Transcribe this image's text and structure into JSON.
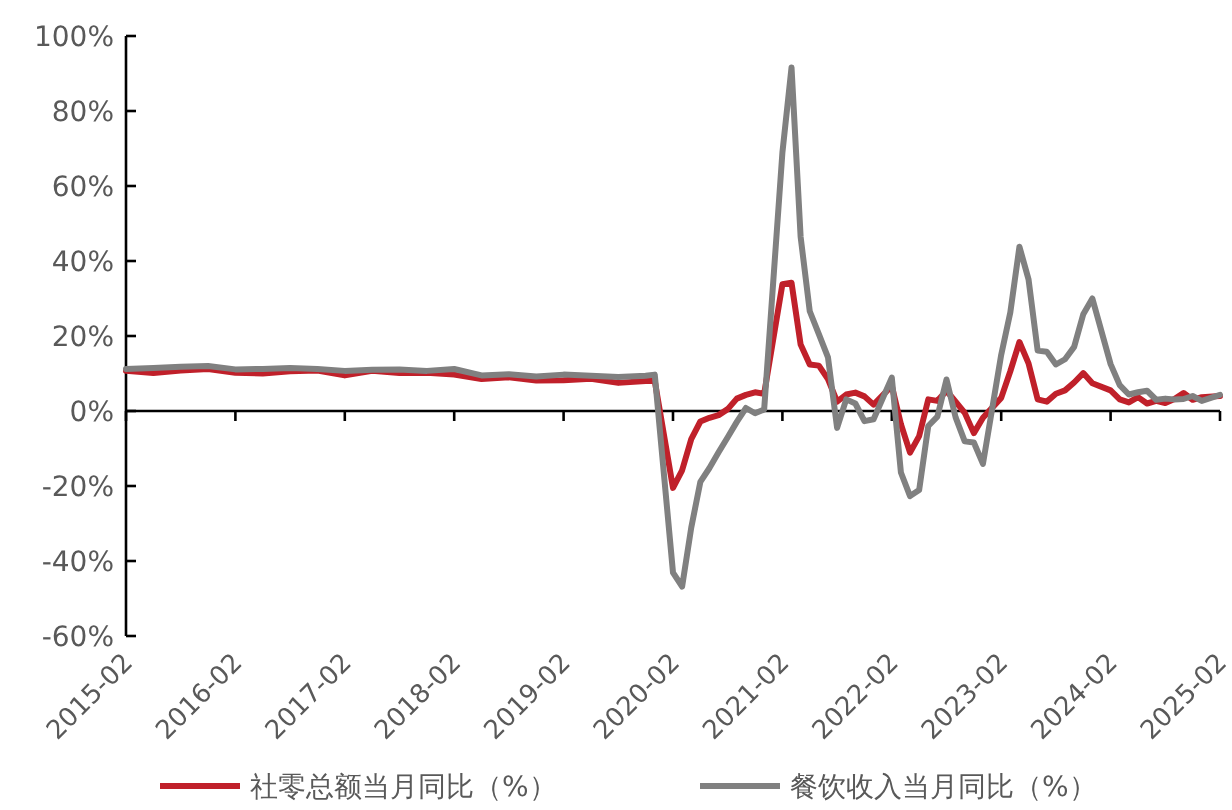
{
  "chart_data": {
    "type": "line",
    "x": [
      "2015-02",
      "2015-05",
      "2015-08",
      "2015-11",
      "2016-02",
      "2016-05",
      "2016-08",
      "2016-11",
      "2017-02",
      "2017-05",
      "2017-08",
      "2017-11",
      "2018-02",
      "2018-05",
      "2018-08",
      "2018-11",
      "2019-02",
      "2019-05",
      "2019-08",
      "2019-11",
      "2019-12",
      "2020-02",
      "2020-03",
      "2020-04",
      "2020-05",
      "2020-06",
      "2020-07",
      "2020-08",
      "2020-09",
      "2020-10",
      "2020-11",
      "2020-12",
      "2021-02",
      "2021-03",
      "2021-04",
      "2021-05",
      "2021-06",
      "2021-07",
      "2021-08",
      "2021-09",
      "2021-10",
      "2021-11",
      "2021-12",
      "2022-02",
      "2022-03",
      "2022-04",
      "2022-05",
      "2022-06",
      "2022-07",
      "2022-08",
      "2022-09",
      "2022-10",
      "2022-11",
      "2022-12",
      "2023-02",
      "2023-03",
      "2023-04",
      "2023-05",
      "2023-06",
      "2023-07",
      "2023-08",
      "2023-09",
      "2023-10",
      "2023-11",
      "2023-12",
      "2024-02",
      "2024-03",
      "2024-04",
      "2024-05",
      "2024-06",
      "2024-07",
      "2024-08",
      "2024-09",
      "2024-10",
      "2024-11",
      "2024-12",
      "2025-02"
    ],
    "series": [
      {
        "name": "社零总额当月同比（%）",
        "color": "#c0202a",
        "values": [
          10.7,
          10.1,
          10.8,
          11.2,
          10.2,
          10.0,
          10.6,
          10.8,
          9.5,
          10.7,
          10.1,
          10.2,
          9.7,
          8.5,
          9.0,
          8.1,
          8.2,
          8.6,
          7.5,
          8.0,
          8.0,
          -20.5,
          -15.8,
          -7.5,
          -2.8,
          -1.8,
          -1.1,
          0.5,
          3.3,
          4.3,
          5.0,
          4.6,
          33.8,
          34.2,
          17.7,
          12.4,
          12.1,
          8.5,
          2.5,
          4.4,
          4.9,
          3.9,
          1.7,
          6.7,
          -3.5,
          -11.1,
          -6.7,
          3.1,
          2.7,
          5.4,
          2.5,
          -0.5,
          -5.9,
          -1.8,
          3.5,
          10.6,
          18.4,
          12.7,
          3.1,
          2.5,
          4.6,
          5.5,
          7.6,
          10.1,
          7.4,
          5.5,
          3.1,
          2.3,
          3.7,
          2.0,
          2.7,
          2.1,
          3.2,
          4.8,
          3.0,
          3.7,
          4.0
        ]
      },
      {
        "name": "餐饮收入当月同比（%）",
        "color": "#808080",
        "values": [
          11.2,
          11.5,
          11.8,
          12.0,
          11.1,
          11.2,
          11.5,
          11.2,
          10.7,
          11.0,
          11.1,
          10.7,
          11.2,
          9.5,
          9.8,
          9.2,
          9.7,
          9.4,
          9.1,
          9.4,
          9.7,
          -43.1,
          -46.8,
          -31.1,
          -18.9,
          -15.2,
          -11.0,
          -7.0,
          -2.9,
          0.8,
          -0.6,
          0.4,
          68.9,
          91.6,
          46.4,
          26.6,
          20.5,
          14.3,
          -4.5,
          3.1,
          2.0,
          -2.7,
          -2.2,
          8.9,
          -16.4,
          -22.7,
          -21.1,
          -4.0,
          -1.5,
          8.4,
          -1.7,
          -8.1,
          -8.4,
          -14.1,
          15.0,
          26.3,
          43.8,
          35.1,
          16.1,
          15.8,
          12.4,
          13.8,
          17.1,
          25.8,
          30.0,
          12.5,
          6.9,
          4.4,
          5.0,
          5.4,
          3.0,
          3.3,
          3.1,
          3.2,
          4.0,
          2.7,
          4.3
        ]
      }
    ],
    "xlim": [
      "2015-02",
      "2025-02"
    ],
    "xticks": [
      "2015-02",
      "2016-02",
      "2017-02",
      "2018-02",
      "2019-02",
      "2020-02",
      "2021-02",
      "2022-02",
      "2023-02",
      "2024-02",
      "2025-02"
    ],
    "ylim": [
      -60,
      100
    ],
    "yticks": [
      {
        "value": -60,
        "label": "-60%"
      },
      {
        "value": -40,
        "label": "-40%"
      },
      {
        "value": -20,
        "label": "-20%"
      },
      {
        "value": 0,
        "label": "0%"
      },
      {
        "value": 20,
        "label": "20%"
      },
      {
        "value": 40,
        "label": "40%"
      },
      {
        "value": 60,
        "label": "60%"
      },
      {
        "value": 80,
        "label": "80%"
      },
      {
        "value": 100,
        "label": "100%"
      }
    ],
    "legend": "bottom",
    "marker": "none",
    "line_style": "solid"
  }
}
